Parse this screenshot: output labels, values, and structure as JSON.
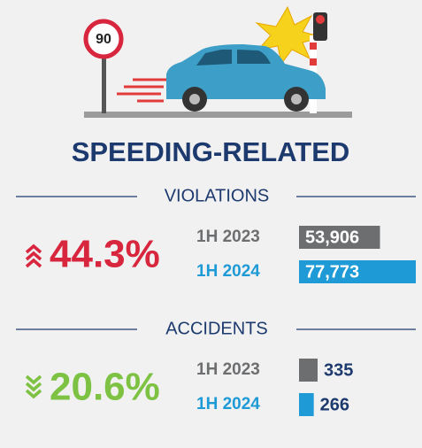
{
  "illustration": {
    "speed_limit": "90"
  },
  "title": "SPEEDING-RELATED",
  "sections": [
    {
      "heading": "VIOLATIONS",
      "change": "44.3%",
      "direction": "up",
      "color": "#d7263d",
      "rows": [
        {
          "label": "1H 2023",
          "value": 53906,
          "value_label": "53,906",
          "color": "#6d6e70"
        },
        {
          "label": "1H 2024",
          "value": 77773,
          "value_label": "77,773",
          "color": "#1e9ad6"
        }
      ]
    },
    {
      "heading": "ACCIDENTS",
      "change": "20.6%",
      "direction": "down",
      "color": "#7dc242",
      "rows": [
        {
          "label": "1H 2023",
          "value": 335,
          "value_label": "335",
          "color": "#6d6e70"
        },
        {
          "label": "1H 2024",
          "value": 266,
          "value_label": "266",
          "color": "#1e9ad6"
        }
      ]
    }
  ]
}
